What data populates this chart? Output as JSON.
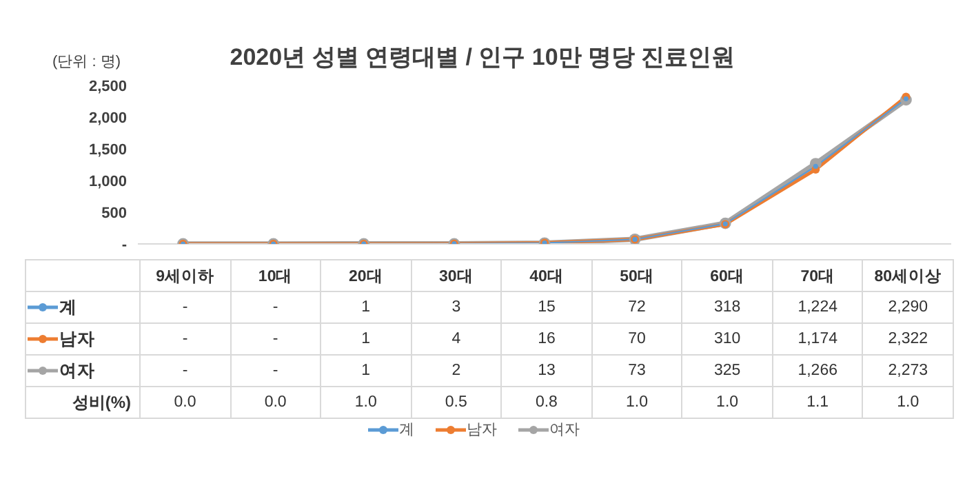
{
  "chart_data": {
    "type": "line",
    "title": "2020년 성별 연령대별 / 인구 10만 명당 진료인원",
    "ylabel": "(단위 : 명)",
    "categories": [
      "9세이하",
      "10대",
      "20대",
      "30대",
      "40대",
      "50대",
      "60대",
      "70대",
      "80세이상"
    ],
    "series": [
      {
        "name": "계",
        "color": "#5b9bd5",
        "values": [
          0,
          0,
          1,
          3,
          15,
          72,
          318,
          1224,
          2290
        ],
        "value_labels": [
          "-",
          "-",
          "1",
          "3",
          "15",
          "72",
          "318",
          "1,224",
          "2,290"
        ]
      },
      {
        "name": "남자",
        "color": "#ed7d31",
        "values": [
          0,
          0,
          1,
          4,
          16,
          70,
          310,
          1174,
          2322
        ],
        "value_labels": [
          "-",
          "-",
          "1",
          "4",
          "16",
          "70",
          "310",
          "1,174",
          "2,322"
        ]
      },
      {
        "name": "여자",
        "color": "#a5a5a5",
        "values": [
          0,
          0,
          1,
          2,
          13,
          73,
          325,
          1266,
          2273
        ],
        "value_labels": [
          "-",
          "-",
          "1",
          "2",
          "13",
          "73",
          "325",
          "1,266",
          "2,273"
        ]
      }
    ],
    "annotations": [
      "성비(%)",
      "0.0",
      "0.0",
      "1.0",
      "0.5",
      "0.8",
      "1.0",
      "1.0",
      "1.1",
      "1.0"
    ],
    "ylim": [
      0,
      2500
    ],
    "yticks": [
      {
        "value": 0,
        "label": "-"
      },
      {
        "value": 500,
        "label": "500"
      },
      {
        "value": 1000,
        "label": "1,000"
      },
      {
        "value": 1500,
        "label": "1,500"
      },
      {
        "value": 2000,
        "label": "2,000"
      },
      {
        "value": 2500,
        "label": "2,500"
      }
    ],
    "grid": false,
    "legend": "bottom",
    "marker": "circle",
    "line_style": "solid"
  }
}
